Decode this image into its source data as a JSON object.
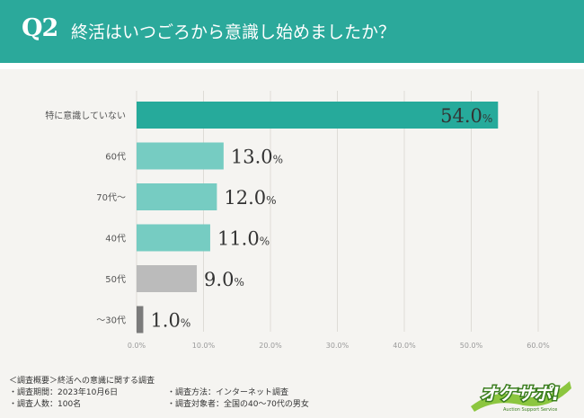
{
  "header": {
    "question_number": "Q2",
    "question_text": "終活はいつごろから意識し始めましたか？"
  },
  "colors": {
    "header_bg": "#2ba99b",
    "panel_bg": "#f5f4f1",
    "primary_bar": "#26aa9b",
    "secondary_bar": "#76ccc2",
    "gray_bar": "#bbbbbb",
    "dark_bar": "#7b7b7b"
  },
  "chart_data": {
    "type": "bar",
    "orientation": "horizontal",
    "categories": [
      "特に意識していない",
      "60代",
      "70代〜",
      "40代",
      "50代",
      "〜30代"
    ],
    "values": [
      54.0,
      13.0,
      12.0,
      11.0,
      9.0,
      1.0
    ],
    "value_labels": [
      "54.0",
      "13.0",
      "12.0",
      "11.0",
      "9.0",
      "1.0"
    ],
    "value_unit": "%",
    "bar_colors": [
      "#26aa9b",
      "#76ccc2",
      "#76ccc2",
      "#76ccc2",
      "#bbbbbb",
      "#7b7b7b"
    ],
    "xlim": [
      0,
      60
    ],
    "x_ticks": [
      "0.0%",
      "10.0%",
      "20.0%",
      "30.0%",
      "40.0%",
      "50.0%",
      "60.0%"
    ],
    "grid": true,
    "xlabel": "",
    "ylabel": ""
  },
  "footer": {
    "survey_title": "＜調査概要＞終活への意識に関する調査",
    "period": "・調査期間：2023年10月6日",
    "method": "・調査方法：インターネット調査",
    "respondents": "・調査人数：100名",
    "target": "・調査対象者：全国の40〜70代の男女"
  },
  "logo": {
    "brand_text": "オケサポ!",
    "sub_text": "Auction Support Service"
  }
}
